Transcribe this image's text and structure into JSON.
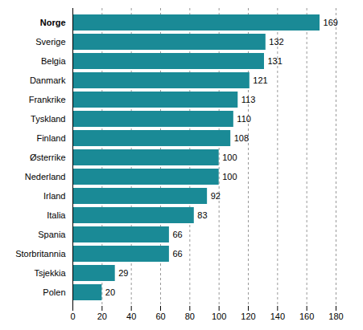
{
  "chart_data": {
    "type": "bar",
    "orientation": "horizontal",
    "categories": [
      "Norge",
      "Sverige",
      "Belgia",
      "Danmark",
      "Frankrike",
      "Tyskland",
      "Finland",
      "Østerrike",
      "Nederland",
      "Irland",
      "Italia",
      "Spania",
      "Storbritannia",
      "Tsjekkia",
      "Polen"
    ],
    "values": [
      169,
      132,
      131,
      121,
      113,
      110,
      108,
      100,
      100,
      92,
      83,
      66,
      66,
      29,
      20
    ],
    "color": "#1a8a96",
    "xlim": [
      0,
      180
    ],
    "xticks": [
      0,
      20,
      40,
      60,
      80,
      100,
      120,
      140,
      160,
      180
    ],
    "grid": true,
    "data_labels": true
  }
}
